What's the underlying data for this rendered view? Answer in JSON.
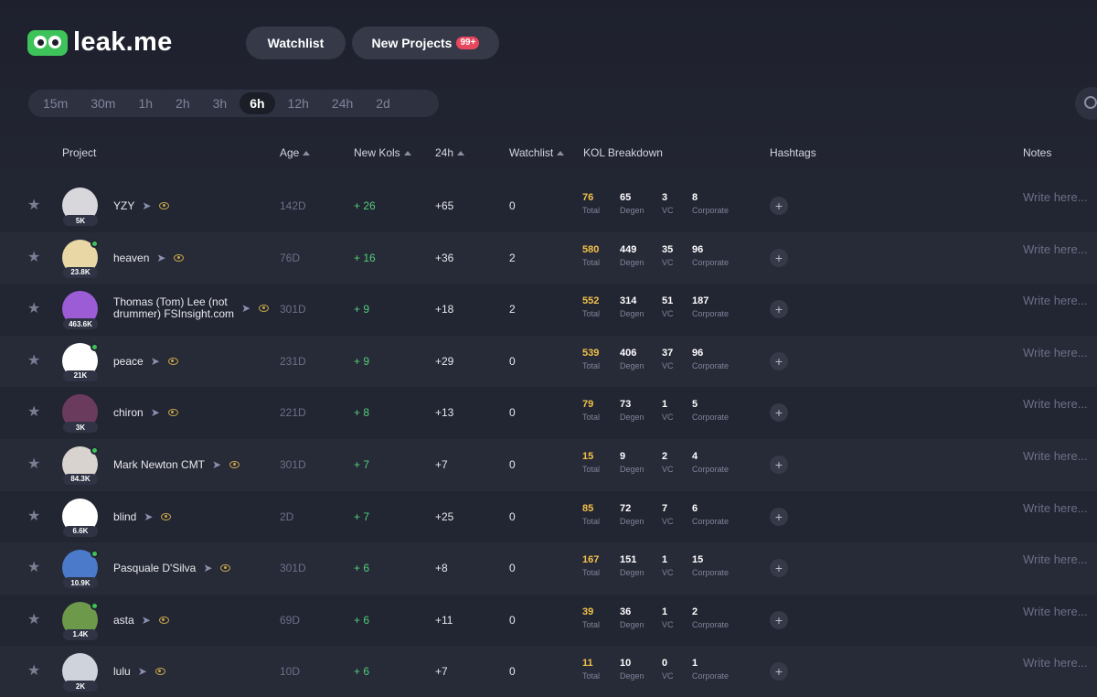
{
  "brand": {
    "name": "leak.me"
  },
  "nav": {
    "watchlist": "Watchlist",
    "new_projects": "New Projects",
    "new_projects_badge": "99+"
  },
  "time_filters": [
    "15m",
    "30m",
    "1h",
    "2h",
    "3h",
    "6h",
    "12h",
    "24h",
    "2d"
  ],
  "active_time_filter": "6h",
  "columns": {
    "project": "Project",
    "age": "Age",
    "new_kols": "New Kols",
    "h24": "24h",
    "watchlist": "Watchlist",
    "kol_breakdown": "KOL Breakdown",
    "hashtags": "Hashtags",
    "notes": "Notes"
  },
  "kol_labels": {
    "total": "Total",
    "degen": "Degen",
    "vc": "VC",
    "corporate": "Corporate"
  },
  "notes_placeholder": "Write here...",
  "rows": [
    {
      "name": "YZY",
      "followers": "5K",
      "online": false,
      "age": "142D",
      "new_kols": "+ 26",
      "h24": "+65",
      "watchlist": "0",
      "total": "76",
      "degen": "65",
      "vc": "3",
      "corporate": "8",
      "avatar_color": "#d8d8dc"
    },
    {
      "name": "heaven",
      "followers": "23.8K",
      "online": true,
      "age": "76D",
      "new_kols": "+ 16",
      "h24": "+36",
      "watchlist": "2",
      "total": "580",
      "degen": "449",
      "vc": "35",
      "corporate": "96",
      "avatar_color": "#e9d7a6"
    },
    {
      "name_line1": "Thomas (Tom) Lee (not",
      "name_line2": "drummer) FSInsight.com",
      "followers": "463.6K",
      "online": false,
      "age": "301D",
      "new_kols": "+ 9",
      "h24": "+18",
      "watchlist": "2",
      "total": "552",
      "degen": "314",
      "vc": "51",
      "corporate": "187",
      "avatar_color": "#9b5cd6"
    },
    {
      "name": "peace",
      "followers": "21K",
      "online": true,
      "age": "231D",
      "new_kols": "+ 9",
      "h24": "+29",
      "watchlist": "0",
      "total": "539",
      "degen": "406",
      "vc": "37",
      "corporate": "96",
      "avatar_color": "#ffffff"
    },
    {
      "name": "chiron",
      "followers": "3K",
      "online": false,
      "age": "221D",
      "new_kols": "+ 8",
      "h24": "+13",
      "watchlist": "0",
      "total": "79",
      "degen": "73",
      "vc": "1",
      "corporate": "5",
      "avatar_color": "#6b3b5e"
    },
    {
      "name": "Mark Newton CMT",
      "followers": "84.3K",
      "online": true,
      "age": "301D",
      "new_kols": "+ 7",
      "h24": "+7",
      "watchlist": "0",
      "total": "15",
      "degen": "9",
      "vc": "2",
      "corporate": "4",
      "avatar_color": "#d9d3cf"
    },
    {
      "name": "blind",
      "followers": "6.6K",
      "online": false,
      "age": "2D",
      "new_kols": "+ 7",
      "h24": "+25",
      "watchlist": "0",
      "total": "85",
      "degen": "72",
      "vc": "7",
      "corporate": "6",
      "avatar_color": "#ffffff"
    },
    {
      "name": "Pasquale D'Silva",
      "followers": "10.9K",
      "online": true,
      "age": "301D",
      "new_kols": "+ 6",
      "h24": "+8",
      "watchlist": "0",
      "total": "167",
      "degen": "151",
      "vc": "1",
      "corporate": "15",
      "avatar_color": "#4a7ac9"
    },
    {
      "name": "asta",
      "followers": "1.4K",
      "online": true,
      "age": "69D",
      "new_kols": "+ 6",
      "h24": "+11",
      "watchlist": "0",
      "total": "39",
      "degen": "36",
      "vc": "1",
      "corporate": "2",
      "avatar_color": "#6d9a4a"
    },
    {
      "name": "lulu",
      "followers": "2K",
      "online": false,
      "age": "10D",
      "new_kols": "+ 6",
      "h24": "+7",
      "watchlist": "0",
      "total": "11",
      "degen": "10",
      "vc": "0",
      "corporate": "1",
      "avatar_color": "#cfd3dc"
    }
  ]
}
